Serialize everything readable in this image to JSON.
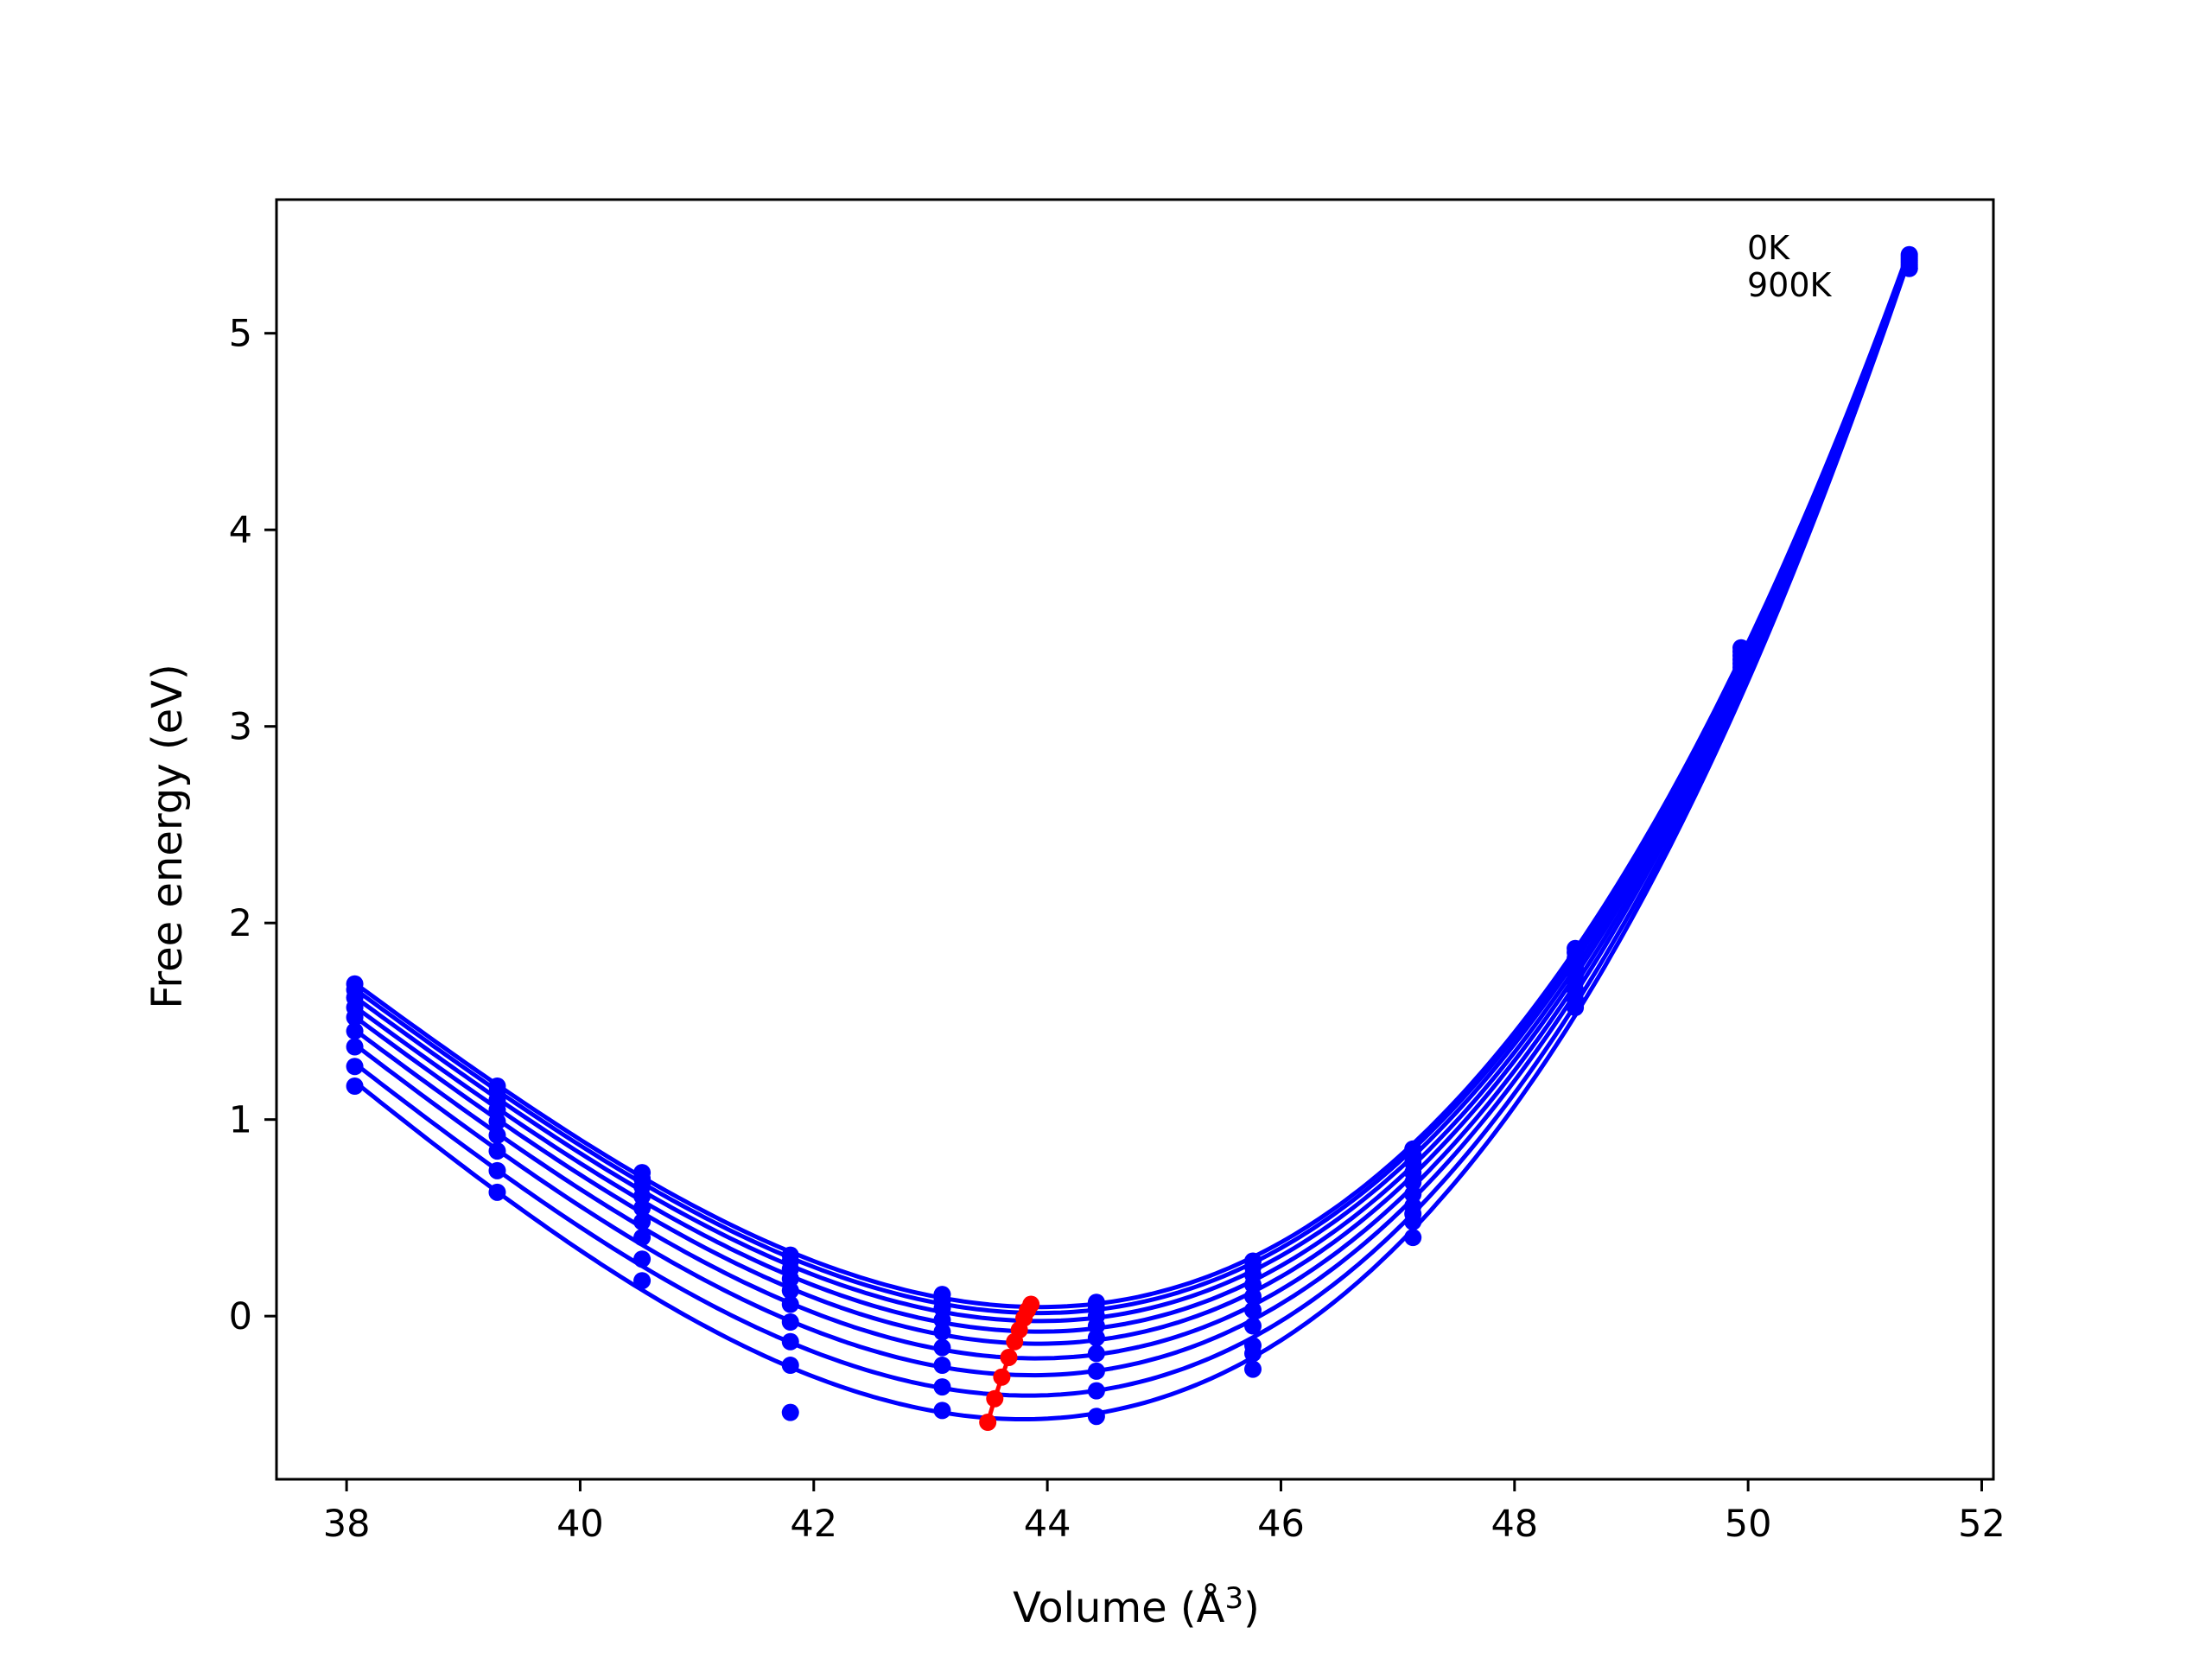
{
  "chart_data": {
    "type": "line",
    "title": "",
    "xlabel": "Volume (Å",
    "xlabel_sup": "3",
    "xlabel_close": ")",
    "ylabel": "Free energy (eV)",
    "xlim": [
      37.4,
      52.1
    ],
    "ylim": [
      -0.83,
      5.68
    ],
    "xticks": [
      "38",
      "40",
      "42",
      "44",
      "46",
      "48",
      "50",
      "52"
    ],
    "yticks": [
      "0",
      "1",
      "2",
      "3",
      "4",
      "5"
    ],
    "grid": false,
    "legend": "none",
    "annotations": [
      "0K",
      "900K"
    ],
    "x": [
      38.07,
      39.29,
      40.53,
      41.8,
      43.1,
      44.42,
      45.76,
      47.13,
      48.52,
      49.94,
      51.38
    ],
    "series": [
      {
        "values": [
          1.69,
          1.17,
          0.73,
          0.31,
          0.11,
          0.07,
          0.28,
          0.85,
          1.87,
          3.4,
          5.4
        ]
      },
      {
        "values": [
          1.66,
          1.14,
          0.7,
          0.28,
          0.08,
          0.04,
          0.25,
          0.82,
          1.85,
          3.38,
          5.39
        ]
      },
      {
        "values": [
          1.62,
          1.1,
          0.66,
          0.24,
          0.04,
          0.0,
          0.21,
          0.78,
          1.82,
          3.36,
          5.38
        ]
      },
      {
        "values": [
          1.57,
          1.05,
          0.61,
          0.19,
          -0.02,
          -0.05,
          0.16,
          0.73,
          1.78,
          3.34,
          5.37
        ]
      },
      {
        "values": [
          1.52,
          0.99,
          0.55,
          0.13,
          -0.08,
          -0.11,
          0.1,
          0.68,
          1.74,
          3.32,
          5.36
        ]
      },
      {
        "values": [
          1.45,
          0.92,
          0.48,
          0.06,
          -0.16,
          -0.19,
          0.03,
          0.62,
          1.7,
          3.3,
          5.35
        ]
      },
      {
        "values": [
          1.37,
          0.84,
          0.4,
          -0.03,
          -0.25,
          -0.28,
          -0.05,
          0.56,
          1.66,
          3.28,
          5.34
        ]
      },
      {
        "values": [
          1.27,
          0.74,
          0.29,
          -0.13,
          -0.36,
          -0.38,
          -0.15,
          0.48,
          1.61,
          3.26,
          5.33
        ]
      },
      {
        "values": [
          1.17,
          0.63,
          0.18,
          -0.25,
          -0.48,
          -0.51,
          -0.27,
          0.4,
          1.57,
          3.25,
          5.33
        ]
      }
    ],
    "extra_points": [
      {
        "x": 41.8,
        "y": -0.49
      },
      {
        "x": 45.76,
        "y": -0.19
      },
      {
        "x": 47.13,
        "y": 0.52
      }
    ],
    "minima": {
      "x": [
        43.86,
        43.83,
        43.8,
        43.76,
        43.72,
        43.67,
        43.61,
        43.55,
        43.49
      ],
      "y": [
        0.06,
        0.03,
        -0.01,
        -0.07,
        -0.13,
        -0.21,
        -0.31,
        -0.42,
        -0.54
      ]
    },
    "colors": {
      "curves": "#0000ff",
      "minima": "#ff0000",
      "axes": "#000000"
    }
  }
}
